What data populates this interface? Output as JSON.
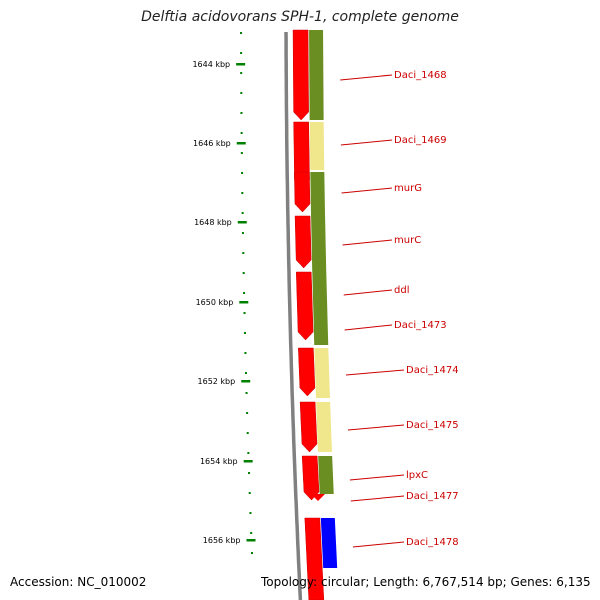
{
  "title": "Delftia acidovorans SPH-1, complete genome",
  "footer": {
    "accession": "Accession: NC_010002",
    "topology": "Topology: circular; Length: 6,767,514 bp; Genes: 6,135"
  },
  "scale": {
    "unit": "kbp",
    "ticks": [
      "1644 kbp",
      "1646 kbp",
      "1648 kbp",
      "1650 kbp",
      "1652 kbp",
      "1654 kbp",
      "1656 kbp"
    ]
  },
  "colors": {
    "cds_forward": "#ff0000",
    "cog_olive": "#6b8e23",
    "cog_pale_yellow": "#f0e68c",
    "cog_blue": "#0000ff",
    "backbone": "#808080",
    "tick_green": "#008000",
    "label_red": "#cc0000"
  },
  "genes": [
    {
      "label": "Daci_1468",
      "cog_color": "#6b8e23"
    },
    {
      "label": "Daci_1469",
      "cog_color": "#f0e68c"
    },
    {
      "label": "murG",
      "cog_color": "#6b8e23"
    },
    {
      "label": "murC",
      "cog_color": "#6b8e23"
    },
    {
      "label": "ddl",
      "cog_color": "#6b8e23"
    },
    {
      "label": "Daci_1473",
      "cog_color": "#6b8e23"
    },
    {
      "label": "Daci_1474",
      "cog_color": "#f0e68c"
    },
    {
      "label": "Daci_1475",
      "cog_color": "#f0e68c"
    },
    {
      "label": "lpxC",
      "cog_color": "#6b8e23"
    },
    {
      "label": "Daci_1477",
      "cog_color": "#6b8e23"
    },
    {
      "label": "Daci_1478",
      "cog_color": "#0000ff"
    }
  ]
}
